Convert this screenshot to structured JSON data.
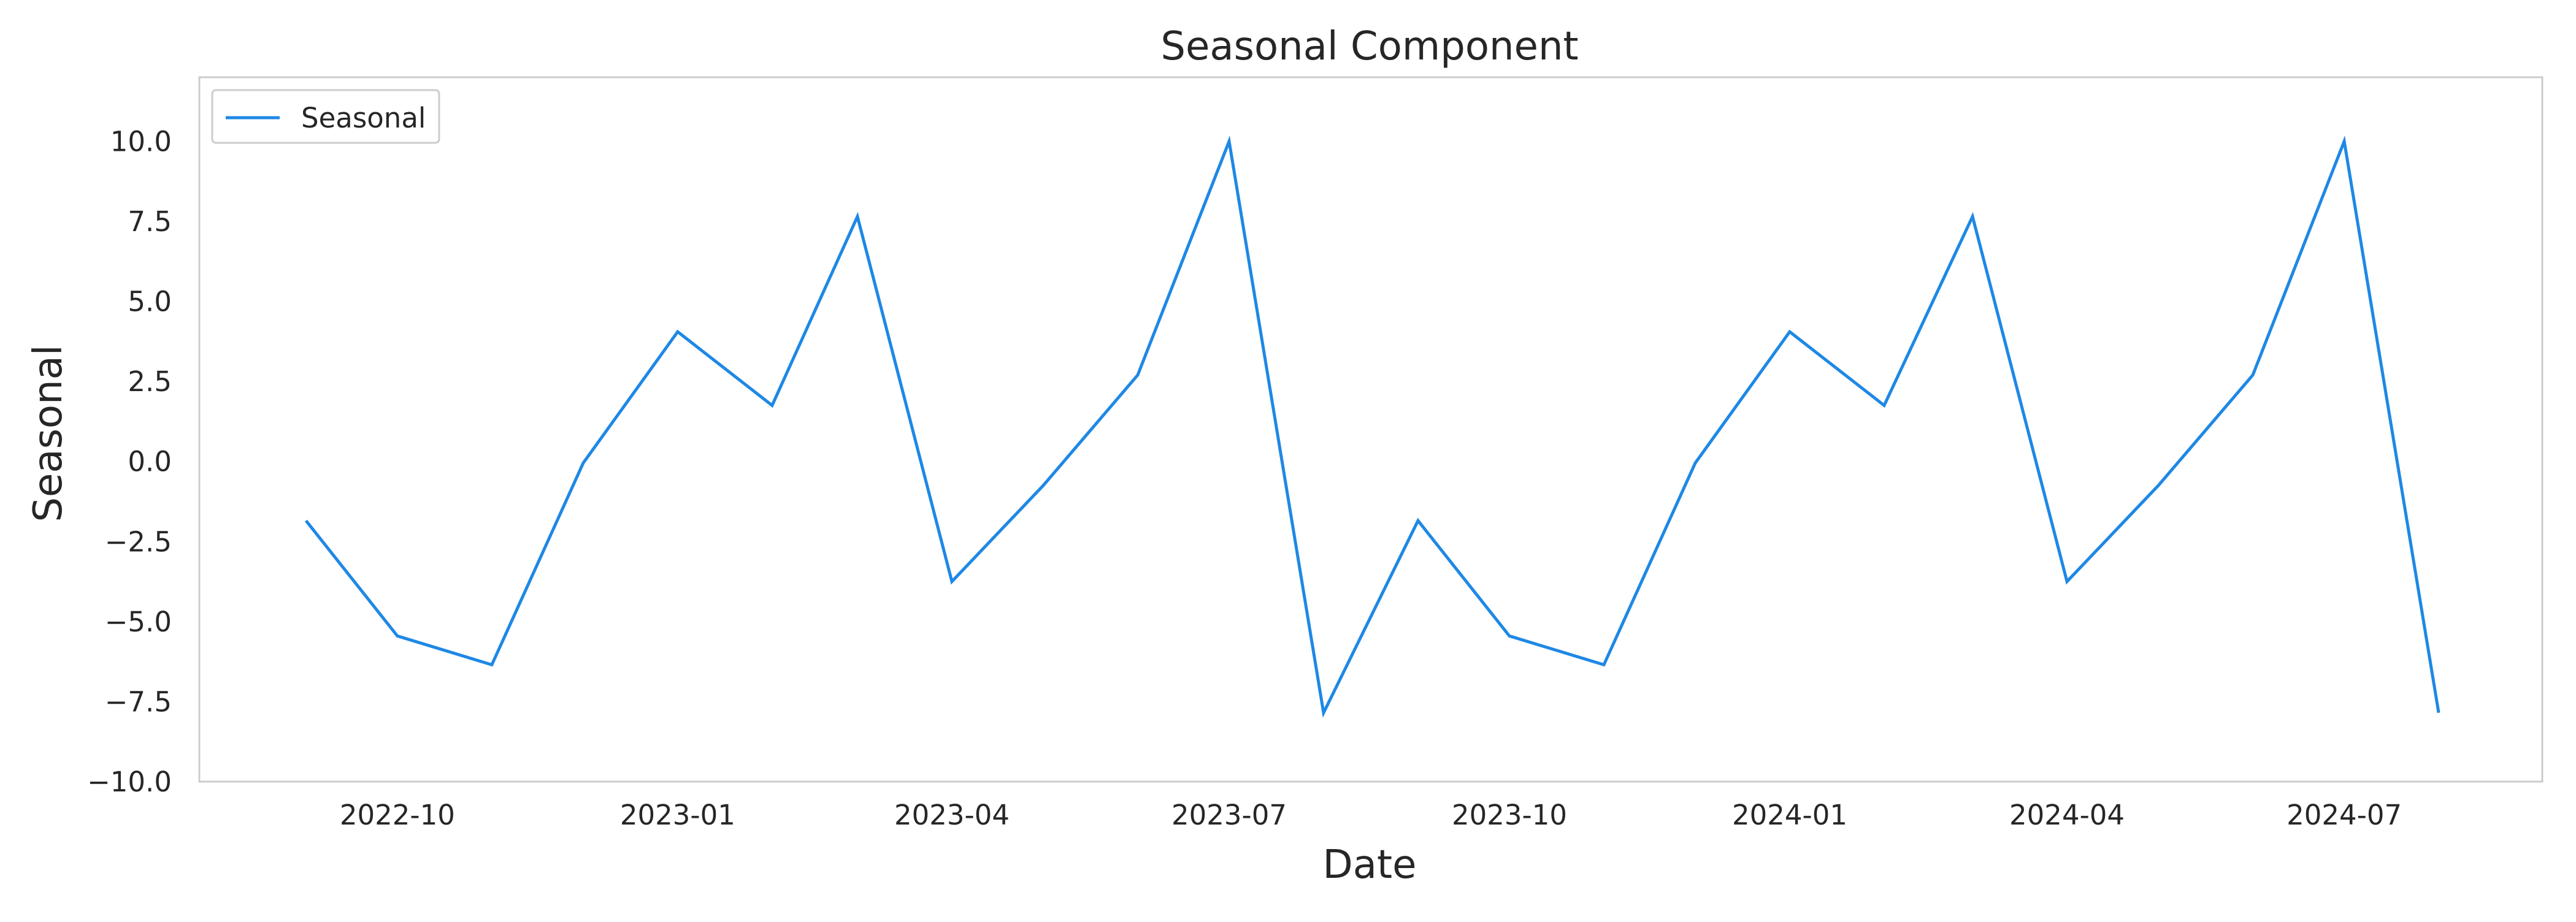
{
  "chart_data": {
    "type": "line",
    "title": "Seasonal Component",
    "xlabel": "Date",
    "ylabel": "Seasonal",
    "x": [
      "2022-09-01",
      "2022-10-01",
      "2022-11-01",
      "2022-12-01",
      "2023-01-01",
      "2023-02-01",
      "2023-03-01",
      "2023-04-01",
      "2023-05-01",
      "2023-06-01",
      "2023-07-01",
      "2023-08-01",
      "2023-09-01",
      "2023-10-01",
      "2023-11-01",
      "2023-12-01",
      "2024-01-01",
      "2024-02-01",
      "2024-03-01",
      "2024-04-01",
      "2024-05-01",
      "2024-06-01",
      "2024-07-01",
      "2024-08-01"
    ],
    "series": [
      {
        "name": "Seasonal",
        "color": "#1e88e5",
        "values": [
          -1.85,
          -5.45,
          -6.35,
          -0.05,
          4.05,
          1.75,
          7.65,
          -3.75,
          -0.75,
          2.7,
          10.0,
          -7.85,
          -1.85,
          -5.45,
          -6.35,
          -0.05,
          4.05,
          1.75,
          7.65,
          -3.75,
          -0.75,
          2.7,
          10.0,
          -7.85
        ]
      }
    ],
    "xlim": [
      "2022-07-28",
      "2024-09-04"
    ],
    "ylim": [
      -10.0,
      12.0
    ],
    "x_ticks": [
      "2022-10-01",
      "2023-01-01",
      "2023-04-01",
      "2023-07-01",
      "2023-10-01",
      "2024-01-01",
      "2024-04-01",
      "2024-07-01"
    ],
    "x_tick_labels": [
      "2022-10",
      "2023-01",
      "2023-04",
      "2023-07",
      "2023-10",
      "2024-01",
      "2024-04",
      "2024-07"
    ],
    "y_ticks": [
      -10.0,
      -7.5,
      -5.0,
      -2.5,
      0.0,
      2.5,
      5.0,
      7.5,
      10.0
    ],
    "y_tick_labels": [
      "−10.0",
      "−7.5",
      "−5.0",
      "−2.5",
      "0.0",
      "2.5",
      "5.0",
      "7.5",
      "10.0"
    ],
    "grid": false,
    "legend_position": "upper-left",
    "frame_color": "#cccccc",
    "text_color": "#262626"
  }
}
